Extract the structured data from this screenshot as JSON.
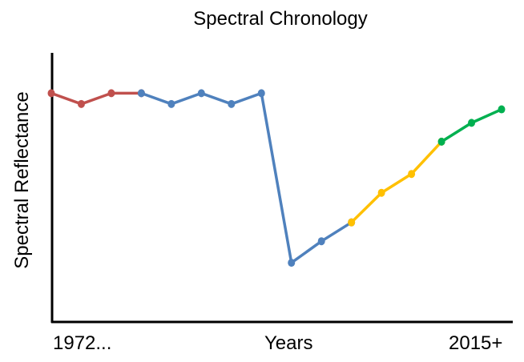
{
  "chart_data": {
    "type": "line",
    "title": "Spectral Chronology",
    "ylabel": "Spectral Reflectance",
    "xlabel": "Years",
    "x_tick_labels": {
      "start": "1972...",
      "end": "2015+"
    },
    "x": [
      1,
      2,
      3,
      4,
      5,
      6,
      7,
      8,
      9,
      10,
      11,
      12,
      13,
      14,
      15,
      16
    ],
    "series": [
      {
        "color": "#c0504d",
        "x": [
          1,
          2,
          3,
          4
        ],
        "values": [
          0.85,
          0.81,
          0.85,
          0.85
        ]
      },
      {
        "color": "#4f81bd",
        "x": [
          4,
          5,
          6,
          7,
          8,
          9,
          10,
          11
        ],
        "values": [
          0.85,
          0.81,
          0.85,
          0.81,
          0.85,
          0.22,
          0.3,
          0.37
        ]
      },
      {
        "color": "#ffc000",
        "x": [
          11,
          12,
          13,
          14
        ],
        "values": [
          0.37,
          0.48,
          0.55,
          0.67
        ]
      },
      {
        "color": "#00b050",
        "x": [
          14,
          15,
          16
        ],
        "values": [
          0.67,
          0.74,
          0.79
        ]
      }
    ],
    "ylim": [
      0,
      1
    ],
    "grid": false,
    "legend": "none"
  }
}
